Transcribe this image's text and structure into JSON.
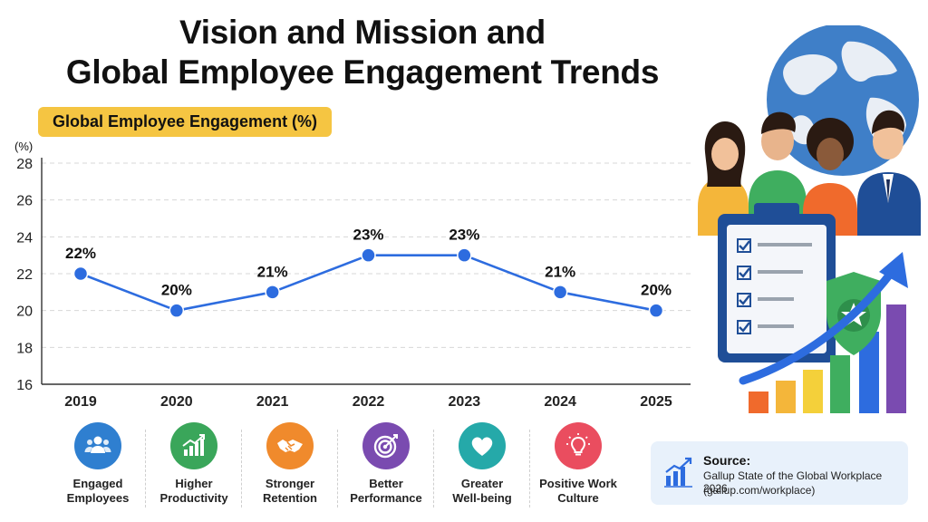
{
  "title": {
    "line1": "Vision and Mission and",
    "line2": "Global Employee Engagement Trends"
  },
  "chart_data": {
    "type": "line",
    "title": "Global Employee Engagement (%)",
    "ylabel": "(%)",
    "xlabel": "",
    "categories": [
      "2019",
      "2020",
      "2021",
      "2022",
      "2023",
      "2024",
      "2025"
    ],
    "series": [
      {
        "values": [
          22,
          20,
          21,
          23,
          23,
          21,
          20
        ]
      }
    ],
    "data_labels": [
      "22%",
      "20%",
      "21%",
      "23%",
      "23%",
      "21%",
      "20%"
    ],
    "ylim": [
      16,
      28
    ],
    "yticks": [
      16,
      18,
      20,
      22,
      24,
      26,
      28
    ],
    "grid": "horizontal dashed",
    "line_color": "#2d6cdf"
  },
  "features": [
    {
      "line1": "Engaged",
      "line2": "Employees",
      "icon": "people-icon",
      "color": "#2f7fd0"
    },
    {
      "line1": "Higher",
      "line2": "Productivity",
      "icon": "growth-chart-icon",
      "color": "#3aa65a"
    },
    {
      "line1": "Stronger",
      "line2": "Retention",
      "icon": "handshake-icon",
      "color": "#f08a2c"
    },
    {
      "line1": "Better",
      "line2": "Performance",
      "icon": "target-icon",
      "color": "#7a4bb0"
    },
    {
      "line1": "Greater",
      "line2": "Well-being",
      "icon": "heart-icon",
      "color": "#25a9a9"
    },
    {
      "line1": "Positive Work",
      "line2": "Culture",
      "icon": "lightbulb-icon",
      "color": "#ea4d5f"
    }
  ],
  "source": {
    "heading": "Source:",
    "line1": "Gallup State of the Global Workplace 2026",
    "line2": "(gallup.com/workplace)"
  },
  "colors": {
    "accent_blue": "#2d6cdf",
    "pill_yellow": "#f5c542",
    "source_bg": "#e8f1fb"
  }
}
